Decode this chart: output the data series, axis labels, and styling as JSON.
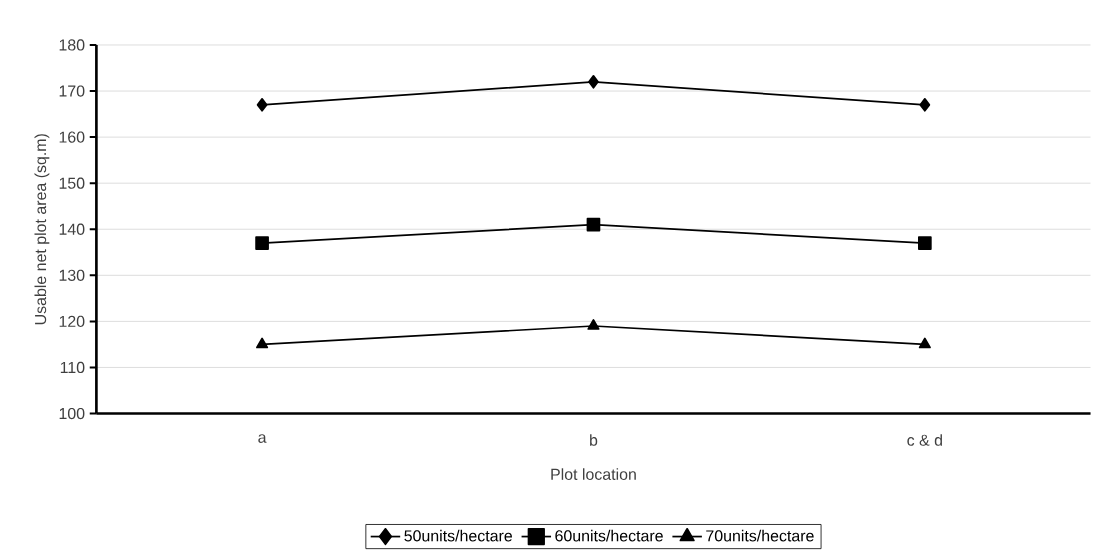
{
  "chart_data": {
    "type": "line",
    "xlabel": "Plot location",
    "ylabel": "Usable net plot area (sq.m)",
    "categories": [
      "a",
      "b",
      "c & d"
    ],
    "series": [
      {
        "name": "50units/hectare",
        "color": "#000000",
        "marker": "diamond",
        "values": [
          167,
          172,
          167
        ]
      },
      {
        "name": "60units/hectare",
        "color": "#000000",
        "marker": "square",
        "values": [
          137,
          141,
          137
        ]
      },
      {
        "name": "70units/hectare",
        "color": "#000000",
        "marker": "triangle",
        "values": [
          115,
          119,
          115
        ]
      }
    ],
    "ylim": [
      100,
      180
    ],
    "yticks": [
      100,
      110,
      120,
      130,
      140,
      150,
      160,
      170,
      180
    ],
    "grid": "y",
    "legend": "bottom",
    "line_style": "solid"
  }
}
